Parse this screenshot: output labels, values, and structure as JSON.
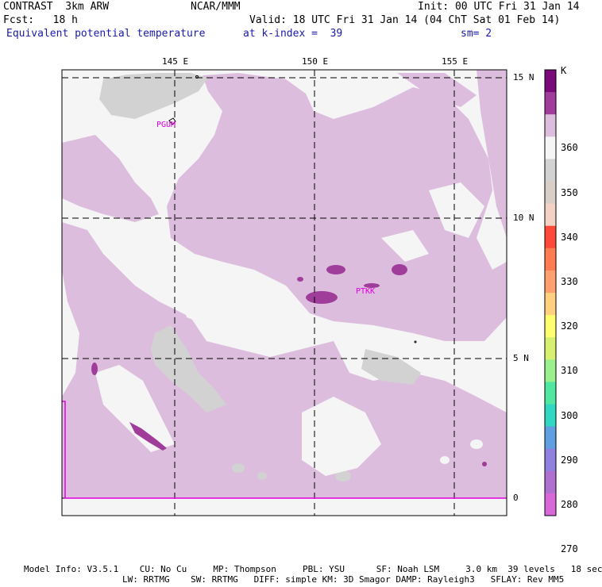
{
  "header": {
    "model": "CONTRAST  3km ARW",
    "forecast": "Fcst:   18 h",
    "center": "NCAR/MMM",
    "init": "Init: 00 UTC Fri 31 Jan 14",
    "valid": "Valid: 18 UTC Fri 31 Jan 14 (04 ChT Sat 01 Feb 14)",
    "field": "Equivalent potential temperature",
    "level": "at k-index =  39",
    "smoothing": "sm= 2"
  },
  "map": {
    "lon_labels": [
      "145 E",
      "150 E",
      "155 E"
    ],
    "lat_labels": [
      "15 N",
      "10 N",
      "5 N",
      "0"
    ],
    "stations": [
      "PGUM",
      "PTKK"
    ]
  },
  "colorbar": {
    "unit": "K",
    "labels": [
      "360",
      "350",
      "340",
      "330",
      "320",
      "310",
      "300",
      "290",
      "280",
      "270"
    ],
    "colors": [
      "#7a0a7a",
      "#a03c9a",
      "#ddbddd",
      "#f5f5f5",
      "#d2d2d2",
      "#d8cfc6",
      "#f2d2c2",
      "#ff4a3a",
      "#ff7b52",
      "#ffa070",
      "#ffd080",
      "#ffff70",
      "#d8f070",
      "#9af08a",
      "#50e8a0",
      "#30d8c0",
      "#60a0e0",
      "#9080e0",
      "#b070d0",
      "#d868d8"
    ],
    "color_names": [
      "dark-purple",
      "purple",
      "light-purple",
      "white",
      "light-gray",
      "tan",
      "peach",
      "red",
      "orange-red",
      "orange",
      "light-orange",
      "yellow",
      "yellow-green",
      "light-green",
      "green",
      "teal",
      "blue",
      "blue-violet",
      "violet",
      "magenta"
    ]
  },
  "footer": {
    "line1": "Model Info: V3.5.1    CU: No Cu     MP: Thompson     PBL: YSU      SF: Noah LSM     3.0 km  39 levels   18 sec",
    "line2": "LW: RRTMG    SW: RRTMG   DIFF: simple KM: 3D Smagor DAMP: Rayleigh3   SFLAY: Rev MM5"
  }
}
